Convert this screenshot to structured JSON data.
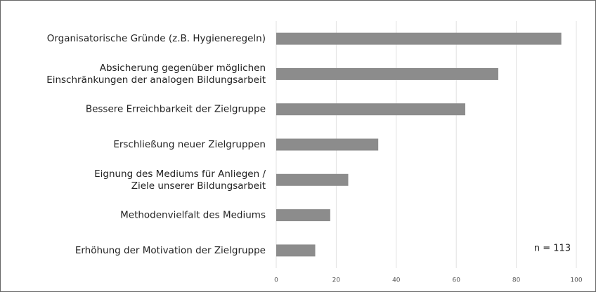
{
  "chart_data": {
    "type": "barh",
    "categories": [
      [
        "Organisatorische Gründe (z.B. Hygieneregeln)"
      ],
      [
        "Absicherung gegenüber möglichen",
        "Einschränkungen der analogen Bildungsarbeit"
      ],
      [
        "Bessere Erreichbarkeit der Zielgruppe"
      ],
      [
        "Erschließung neuer Zielgruppen"
      ],
      [
        "Eignung des Mediums für Anliegen /",
        "Ziele unserer Bildungsarbeit"
      ],
      [
        "Methodenvielfalt des Mediums"
      ],
      [
        "Erhöhung der Motivation der Zielgruppe"
      ]
    ],
    "values": [
      95,
      74,
      63,
      34,
      24,
      18,
      13
    ],
    "color": "#8c8c8c",
    "xlim": [
      0,
      100
    ],
    "xticks": [
      0,
      20,
      40,
      60,
      80,
      100
    ],
    "grid": true,
    "annotation": "n = 113"
  }
}
